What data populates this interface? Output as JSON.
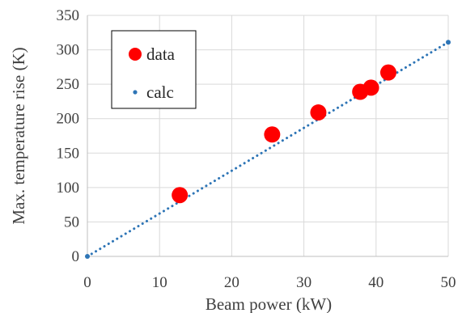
{
  "chart_data": {
    "type": "scatter",
    "title": "",
    "xlabel": "Beam power (kW)",
    "ylabel": "Max. temperature rise (K)",
    "xlim": [
      0,
      50
    ],
    "ylim": [
      0,
      350
    ],
    "xticks": [
      0,
      10,
      20,
      30,
      40,
      50
    ],
    "yticks": [
      0,
      50,
      100,
      150,
      200,
      250,
      300,
      350
    ],
    "grid": true,
    "legend_position": "top-left",
    "series": [
      {
        "name": "data",
        "marker": "large-circle",
        "color": "#ff0000",
        "x": [
          12.8,
          25.6,
          32.0,
          37.8,
          39.3,
          41.7
        ],
        "y": [
          89,
          177,
          209,
          239,
          245,
          267
        ]
      },
      {
        "name": "calc",
        "marker": "dotted-line",
        "color": "#2e75b6",
        "x": [
          0,
          50
        ],
        "y": [
          0,
          311
        ]
      }
    ]
  }
}
